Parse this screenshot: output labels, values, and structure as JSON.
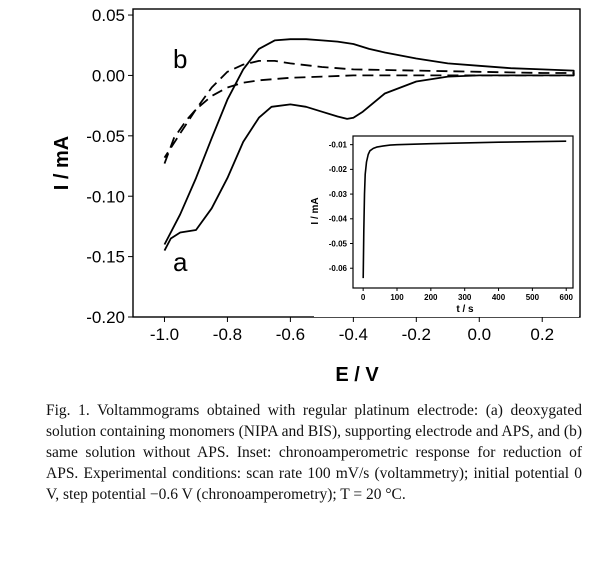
{
  "chart_data": [
    {
      "type": "line",
      "title": "",
      "xlabel": "E / V",
      "ylabel": "I / mA",
      "xlim": [
        -1.1,
        0.32
      ],
      "ylim": [
        -0.2,
        0.055
      ],
      "xticks": [
        "-1.0",
        "-0.8",
        "-0.6",
        "-0.4",
        "-0.2",
        "0.0",
        "0.2"
      ],
      "yticks": [
        "0.05",
        "0.00",
        "-0.05",
        "-0.10",
        "-0.15",
        "-0.20"
      ],
      "grid": false,
      "series": [
        {
          "name": "a",
          "style": "solid",
          "x": [
            -1.0,
            -0.98,
            -0.95,
            -0.9,
            -0.85,
            -0.8,
            -0.75,
            -0.7,
            -0.66,
            -0.6,
            -0.55,
            -0.5,
            -0.45,
            -0.42,
            -0.4,
            -0.37,
            -0.3,
            -0.2,
            -0.1,
            0.0,
            0.1,
            0.2,
            0.3,
            0.3,
            0.2,
            0.1,
            0.0,
            -0.1,
            -0.2,
            -0.3,
            -0.35,
            -0.4,
            -0.45,
            -0.5,
            -0.55,
            -0.6,
            -0.65,
            -0.7,
            -0.75,
            -0.8,
            -0.85,
            -0.9,
            -0.95,
            -1.0
          ],
          "y": [
            -0.145,
            -0.135,
            -0.13,
            -0.128,
            -0.11,
            -0.085,
            -0.055,
            -0.035,
            -0.026,
            -0.024,
            -0.026,
            -0.03,
            -0.034,
            -0.036,
            -0.035,
            -0.03,
            -0.015,
            -0.005,
            -0.001,
            0.0,
            0.0,
            0.0,
            0.0,
            0.004,
            0.005,
            0.006,
            0.008,
            0.01,
            0.014,
            0.019,
            0.022,
            0.026,
            0.028,
            0.029,
            0.03,
            0.03,
            0.029,
            0.022,
            0.005,
            -0.02,
            -0.052,
            -0.085,
            -0.115,
            -0.14
          ]
        },
        {
          "name": "b",
          "style": "dashed",
          "x": [
            -1.0,
            -0.97,
            -0.93,
            -0.9,
            -0.85,
            -0.8,
            -0.75,
            -0.7,
            -0.6,
            -0.5,
            -0.4,
            -0.3,
            -0.2,
            0.0,
            0.2,
            0.3,
            0.3,
            0.2,
            0.0,
            -0.2,
            -0.4,
            -0.5,
            -0.6,
            -0.65,
            -0.7,
            -0.75,
            -0.8,
            -0.85,
            -0.9,
            -0.95,
            -1.0
          ],
          "y": [
            -0.073,
            -0.052,
            -0.037,
            -0.028,
            -0.017,
            -0.01,
            -0.006,
            -0.004,
            -0.002,
            -0.001,
            0.0,
            0.0,
            0.0,
            0.0,
            0.0,
            0.0,
            0.002,
            0.002,
            0.003,
            0.004,
            0.005,
            0.007,
            0.01,
            0.012,
            0.012,
            0.009,
            0.003,
            -0.01,
            -0.028,
            -0.048,
            -0.068
          ]
        }
      ],
      "annotations": [
        {
          "text": "a",
          "x": -0.95,
          "y": -0.162
        },
        {
          "text": "b",
          "x": -0.95,
          "y": 0.006
        }
      ]
    },
    {
      "type": "line",
      "title": "",
      "xlabel": "t / s",
      "ylabel": "I / mA",
      "xlim": [
        -30,
        620
      ],
      "ylim": [
        -0.068,
        -0.0065
      ],
      "xticks": [
        "0",
        "100",
        "200",
        "300",
        "400",
        "500",
        "600"
      ],
      "yticks": [
        "-0.01",
        "-0.02",
        "-0.03",
        "-0.04",
        "-0.05",
        "-0.06"
      ],
      "grid": false,
      "series": [
        {
          "name": "",
          "style": "solid",
          "x": [
            0,
            2,
            4,
            6,
            10,
            15,
            20,
            30,
            40,
            60,
            80,
            100,
            150,
            200,
            300,
            400,
            500,
            600
          ],
          "y": [
            -0.064,
            -0.045,
            -0.03,
            -0.022,
            -0.017,
            -0.014,
            -0.0125,
            -0.0115,
            -0.011,
            -0.0105,
            -0.0102,
            -0.01,
            -0.0098,
            -0.0096,
            -0.0093,
            -0.009,
            -0.0088,
            -0.0086
          ]
        }
      ]
    }
  ],
  "caption": "Fig. 1.  Voltammograms obtained with regular platinum electrode: (a) deoxygated solution containing monomers (NIPA and BIS), supporting electrode and APS, and (b) same solution without APS. Inset: chronoamperometric response for reduction of APS. Experimental conditions: scan rate 100 mV/s (voltammetry); initial potential 0 V, step potential −0.6 V (chronoamperometry); T = 20 °C."
}
